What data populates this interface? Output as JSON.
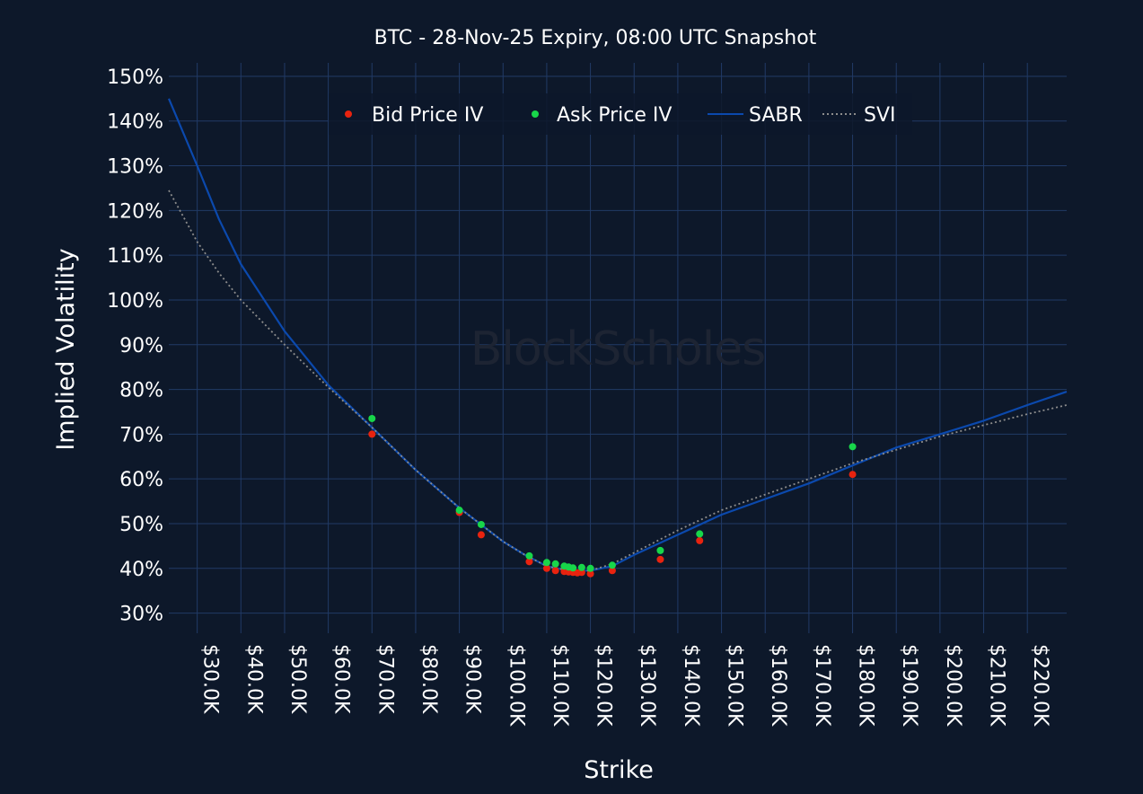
{
  "chart_data": {
    "type": "scatter",
    "title": "BTC - 28-Nov-25 Expiry, 08:00 UTC Snapshot",
    "xlabel": "Strike",
    "ylabel": "Implied Volatility",
    "watermark": "BlockScholes",
    "xlim": [
      23500,
      229000
    ],
    "ylim": [
      25.5,
      153
    ],
    "x_ticks": [
      30000,
      40000,
      50000,
      60000,
      70000,
      80000,
      90000,
      100000,
      110000,
      120000,
      130000,
      140000,
      150000,
      160000,
      170000,
      180000,
      190000,
      200000,
      210000,
      220000
    ],
    "x_tick_labels": [
      "$30.0K",
      "$40.0K",
      "$50.0K",
      "$60.0K",
      "$70.0K",
      "$80.0K",
      "$90.0K",
      "$100.0K",
      "$110.0K",
      "$120.0K",
      "$130.0K",
      "$140.0K",
      "$150.0K",
      "$160.0K",
      "$170.0K",
      "$180.0K",
      "$190.0K",
      "$200.0K",
      "$210.0K",
      "$220.0K"
    ],
    "y_ticks": [
      30,
      40,
      50,
      60,
      70,
      80,
      90,
      100,
      110,
      120,
      130,
      140,
      150
    ],
    "y_tick_labels": [
      "30%",
      "40%",
      "50%",
      "60%",
      "70%",
      "80%",
      "90%",
      "100%",
      "110%",
      "120%",
      "130%",
      "140%",
      "150%"
    ],
    "grid": true,
    "legend_position": "top-center",
    "series": [
      {
        "name": "Bid Price IV",
        "kind": "markers",
        "color": "#e8230f",
        "x": [
          70000,
          90000,
          95000,
          106000,
          110000,
          112000,
          114000,
          115000,
          116000,
          117000,
          118000,
          120000,
          125000,
          136000,
          145000,
          180000
        ],
        "y": [
          70,
          52.5,
          47.5,
          41.5,
          40,
          39.5,
          39.3,
          39.2,
          39.1,
          39,
          39.1,
          38.8,
          39.5,
          42,
          46.2,
          61
        ]
      },
      {
        "name": "Ask Price IV",
        "kind": "markers",
        "color": "#18d64a",
        "x": [
          70000,
          90000,
          95000,
          106000,
          110000,
          112000,
          114000,
          115000,
          116000,
          118000,
          120000,
          125000,
          136000,
          145000,
          180000
        ],
        "y": [
          73.5,
          53,
          49.8,
          42.8,
          41.3,
          41,
          40.5,
          40.3,
          40.1,
          40.2,
          40,
          40.7,
          44,
          47.7,
          67.2
        ]
      },
      {
        "name": "SABR",
        "kind": "line",
        "color": "#0b49ad",
        "x": [
          23500,
          30000,
          35000,
          40000,
          50000,
          60000,
          70000,
          80000,
          90000,
          100000,
          105000,
          110000,
          115000,
          120000,
          125000,
          130000,
          140000,
          150000,
          160000,
          170000,
          180000,
          190000,
          200000,
          210000,
          220000,
          229000
        ],
        "y": [
          145,
          130,
          118,
          108,
          93,
          81,
          71.5,
          62,
          53.5,
          46,
          43,
          40.5,
          39.5,
          39.5,
          40.5,
          43,
          47.5,
          52,
          55.5,
          59,
          63,
          67,
          70,
          73,
          76.5,
          79.5
        ]
      },
      {
        "name": "SVI",
        "kind": "dotted-line",
        "color": "#8c8c8c",
        "x": [
          23500,
          30000,
          35000,
          40000,
          50000,
          60000,
          70000,
          80000,
          90000,
          100000,
          105000,
          110000,
          115000,
          120000,
          125000,
          130000,
          140000,
          150000,
          160000,
          170000,
          180000,
          190000,
          200000,
          210000,
          220000,
          229000
        ],
        "y": [
          124.5,
          113,
          106,
          100,
          90,
          80.5,
          71.5,
          62,
          53.5,
          46,
          43,
          40.5,
          39.5,
          39.5,
          41,
          43.5,
          48.5,
          53,
          56.5,
          60,
          63.5,
          66.5,
          69.5,
          72,
          74.5,
          76.5
        ]
      }
    ]
  }
}
